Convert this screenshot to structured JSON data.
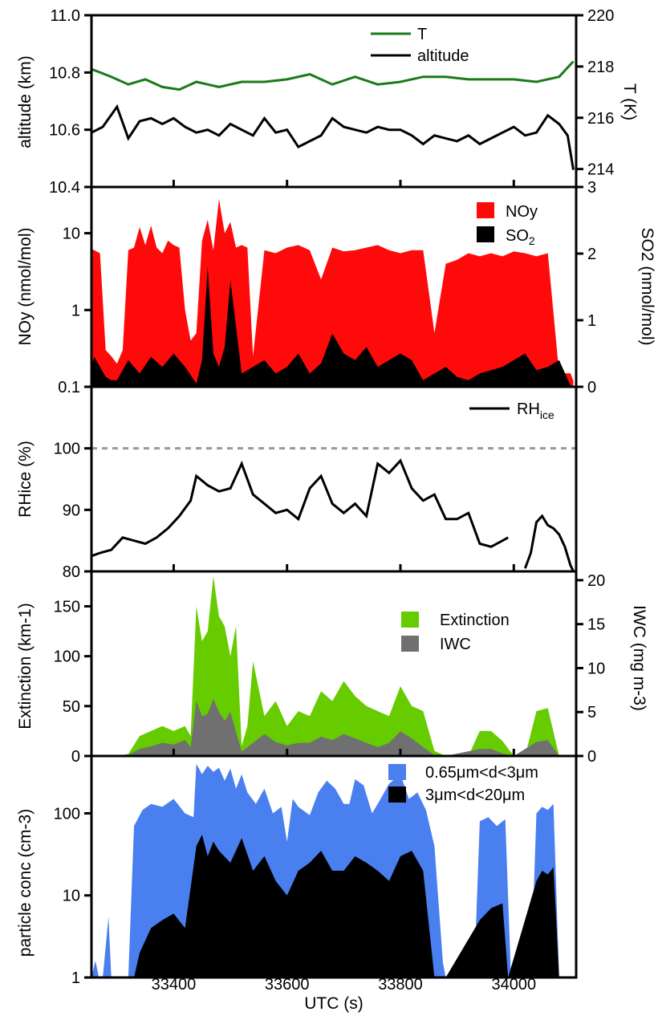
{
  "colors": {
    "temperature": "#1a7a1a",
    "altitude": "#000000",
    "noy": "#ff0a0a",
    "so2": "#000000",
    "rhice": "#000000",
    "saturation_line": "#999999",
    "extinction": "#66cc00",
    "iwc": "#707070",
    "small_particles": "#4a7ff0",
    "large_particles": "#000000"
  },
  "chart_data": [
    {
      "type": "line",
      "panel": "altitude-temperature",
      "ylabel": "altitude (km)",
      "ylim": [
        10.4,
        11.0
      ],
      "yticks": [
        "11.0",
        "10.8",
        "10.6",
        "10.4"
      ],
      "y2label": "T (K)",
      "y2lim": [
        213.3,
        220
      ],
      "y2ticks": [
        "220",
        "218",
        "216",
        "214"
      ],
      "legend": [
        "T",
        "altitude"
      ],
      "legend_position": "top-center",
      "series": [
        {
          "name": "T",
          "axis": "right",
          "x": [
            33255,
            33290,
            33320,
            33350,
            33380,
            33410,
            33440,
            33480,
            33520,
            33560,
            33600,
            33640,
            33680,
            33720,
            33760,
            33800,
            33840,
            33880,
            33920,
            33960,
            34000,
            34040,
            34080,
            34105
          ],
          "values": [
            217.9,
            217.6,
            217.3,
            217.5,
            217.2,
            217.1,
            217.4,
            217.2,
            217.4,
            217.4,
            217.5,
            217.7,
            217.3,
            217.6,
            217.3,
            217.4,
            217.6,
            217.6,
            217.5,
            217.5,
            217.5,
            217.4,
            217.6,
            218.2
          ]
        },
        {
          "name": "altitude",
          "axis": "left",
          "x": [
            33255,
            33275,
            33300,
            33320,
            33340,
            33360,
            33380,
            33400,
            33420,
            33440,
            33460,
            33480,
            33500,
            33520,
            33540,
            33560,
            33580,
            33600,
            33620,
            33640,
            33660,
            33680,
            33700,
            33720,
            33740,
            33760,
            33780,
            33800,
            33820,
            33840,
            33860,
            33880,
            33900,
            33920,
            33940,
            33960,
            33980,
            34000,
            34020,
            34040,
            34060,
            34080,
            34095,
            34105
          ],
          "values": [
            10.59,
            10.61,
            10.68,
            10.57,
            10.63,
            10.64,
            10.62,
            10.64,
            10.61,
            10.59,
            10.6,
            10.58,
            10.62,
            10.6,
            10.58,
            10.64,
            10.59,
            10.6,
            10.54,
            10.56,
            10.58,
            10.64,
            10.61,
            10.6,
            10.59,
            10.61,
            10.6,
            10.6,
            10.58,
            10.55,
            10.58,
            10.57,
            10.56,
            10.58,
            10.55,
            10.57,
            10.59,
            10.61,
            10.58,
            10.59,
            10.65,
            10.62,
            10.58,
            10.46
          ]
        }
      ]
    },
    {
      "type": "area",
      "panel": "noy-so2",
      "ylabel": "NOy (nmol/mol)",
      "yscale": "log",
      "ylim": [
        0.1,
        40
      ],
      "yticks": [
        "10",
        "1",
        "0.1"
      ],
      "y2label": "SO2 (nmol/mol)",
      "y2lim": [
        0,
        3
      ],
      "y2ticks": [
        "3",
        "2",
        "1",
        "0"
      ],
      "legend": [
        "NOy",
        "SO2"
      ],
      "legend_position": "top-right",
      "series": [
        {
          "name": "NOy",
          "axis": "left",
          "x": [
            33255,
            33260,
            33270,
            33280,
            33290,
            33300,
            33310,
            33320,
            33330,
            33340,
            33350,
            33360,
            33370,
            33380,
            33390,
            33400,
            33410,
            33420,
            33430,
            33440,
            33450,
            33460,
            33470,
            33480,
            33490,
            33500,
            33510,
            33520,
            33530,
            33540,
            33560,
            33580,
            33600,
            33620,
            33640,
            33660,
            33680,
            33700,
            33720,
            33740,
            33760,
            33780,
            33800,
            33820,
            33840,
            33860,
            33880,
            33900,
            33920,
            33940,
            33960,
            33980,
            34000,
            34020,
            34040,
            34060,
            34080,
            34100,
            34105
          ],
          "values": [
            6.2,
            6.0,
            5.5,
            0.3,
            0.25,
            0.2,
            0.3,
            6.0,
            6.5,
            12.0,
            7.0,
            12.5,
            6.5,
            5.5,
            8.0,
            7.0,
            6.5,
            1.0,
            0.4,
            0.5,
            8.0,
            15.0,
            6.0,
            28.0,
            10.0,
            14.0,
            6.5,
            7.0,
            6.5,
            0.25,
            6.0,
            5.5,
            6.5,
            7.0,
            6.0,
            2.5,
            6.5,
            5.8,
            6.0,
            6.5,
            7.0,
            6.0,
            5.5,
            6.0,
            6.0,
            0.5,
            4.0,
            4.5,
            5.5,
            5.0,
            5.5,
            5.0,
            5.8,
            5.5,
            5.0,
            5.5,
            0.15,
            0.15,
            0.12
          ]
        },
        {
          "name": "SO2",
          "axis": "right",
          "x": [
            33255,
            33260,
            33270,
            33280,
            33290,
            33300,
            33320,
            33340,
            33360,
            33380,
            33400,
            33420,
            33440,
            33450,
            33460,
            33470,
            33480,
            33490,
            33500,
            33520,
            33540,
            33560,
            33580,
            33600,
            33620,
            33640,
            33660,
            33680,
            33700,
            33720,
            33740,
            33760,
            33780,
            33800,
            33820,
            33840,
            33860,
            33880,
            33900,
            33920,
            33940,
            33960,
            33980,
            34000,
            34020,
            34040,
            34060,
            34080,
            34100,
            34105
          ],
          "values": [
            0.3,
            0.45,
            0.3,
            0.15,
            0.1,
            0.1,
            0.4,
            0.2,
            0.45,
            0.3,
            0.5,
            0.3,
            0.05,
            0.4,
            1.8,
            0.5,
            0.3,
            0.6,
            1.6,
            0.2,
            0.3,
            0.4,
            0.2,
            0.3,
            0.5,
            0.2,
            0.35,
            0.8,
            0.5,
            0.4,
            0.6,
            0.3,
            0.4,
            0.5,
            0.4,
            0.1,
            0.2,
            0.3,
            0.15,
            0.1,
            0.2,
            0.25,
            0.3,
            0.4,
            0.5,
            0.25,
            0.3,
            0.4,
            0.02,
            0.02
          ]
        }
      ]
    },
    {
      "type": "line",
      "panel": "rhice",
      "ylabel": "RHice (%)",
      "ylim": [
        80,
        110
      ],
      "yticks": [
        "100",
        "90",
        "80"
      ],
      "legend": [
        "RHice"
      ],
      "legend_position": "top-right",
      "reference_line": 100,
      "series": [
        {
          "name": "RHice",
          "x": [
            33255,
            33270,
            33290,
            33310,
            33330,
            33350,
            33370,
            33390,
            33410,
            33430,
            33440,
            33460,
            33480,
            33500,
            33520,
            33540,
            33560,
            33580,
            33600,
            33620,
            33640,
            33660,
            33680,
            33700,
            33720,
            33740,
            33760,
            33780,
            33800,
            33820,
            33840,
            33860,
            33880,
            33900,
            33920,
            33940,
            33960,
            33980,
            33990
          ],
          "values": [
            82.5,
            83.0,
            83.5,
            85.5,
            85.0,
            84.5,
            85.5,
            87.0,
            89.0,
            91.5,
            95.5,
            94.0,
            93.0,
            93.5,
            97.5,
            92.5,
            91.0,
            89.5,
            90.0,
            88.5,
            93.5,
            95.5,
            91.0,
            89.5,
            91.0,
            89.0,
            97.5,
            96.0,
            98.0,
            93.5,
            91.5,
            92.5,
            88.5,
            88.5,
            89.5,
            84.5,
            84.0,
            85.0,
            85.5
          ]
        },
        {
          "name": "RHice",
          "x": [
            34020,
            34030,
            34040,
            34050,
            34060,
            34070,
            34080,
            34090,
            34100,
            34105
          ],
          "values": [
            80.5,
            83.0,
            88.0,
            89.0,
            87.5,
            87.0,
            86.0,
            84.0,
            81.0,
            80.0
          ]
        }
      ]
    },
    {
      "type": "area",
      "panel": "extinction-iwc",
      "ylabel": "Extinction (km-1)",
      "ylim": [
        0,
        185
      ],
      "yticks": [
        "150",
        "100",
        "50",
        "0"
      ],
      "y2label": "IWC (mg m-3)",
      "y2lim": [
        0,
        21
      ],
      "y2ticks": [
        "20",
        "15",
        "10",
        "5",
        "0"
      ],
      "legend": [
        "Extinction",
        "IWC"
      ],
      "legend_position": "top-right",
      "series": [
        {
          "name": "Extinction",
          "axis": "left",
          "x": [
            33255,
            33300,
            33320,
            33340,
            33360,
            33380,
            33400,
            33420,
            33430,
            33440,
            33450,
            33460,
            33470,
            33480,
            33490,
            33500,
            33510,
            33520,
            33530,
            33540,
            33560,
            33580,
            33600,
            33620,
            33640,
            33660,
            33680,
            33700,
            33720,
            33740,
            33760,
            33780,
            33800,
            33820,
            33840,
            33860,
            33880,
            33900,
            33920,
            33940,
            33960,
            33980,
            34000,
            34020,
            34040,
            34060,
            34080,
            34105
          ],
          "values": [
            0,
            0,
            2,
            20,
            25,
            30,
            25,
            30,
            20,
            150,
            115,
            125,
            180,
            140,
            130,
            100,
            130,
            10,
            30,
            95,
            40,
            55,
            30,
            45,
            40,
            65,
            55,
            75,
            60,
            50,
            45,
            40,
            70,
            50,
            45,
            5,
            0,
            0,
            0,
            25,
            25,
            15,
            0,
            0,
            45,
            48,
            0,
            0
          ]
        },
        {
          "name": "IWC",
          "axis": "right",
          "x": [
            33255,
            33320,
            33340,
            33360,
            33380,
            33400,
            33420,
            33430,
            33440,
            33450,
            33460,
            33470,
            33480,
            33490,
            33500,
            33520,
            33540,
            33560,
            33580,
            33600,
            33620,
            33640,
            33660,
            33680,
            33700,
            33720,
            33740,
            33760,
            33780,
            33800,
            33820,
            33840,
            33860,
            33880,
            33940,
            33960,
            33980,
            34000,
            34040,
            34060,
            34080,
            34105
          ],
          "values": [
            0,
            0.1,
            0.8,
            1.1,
            1.5,
            1.3,
            1.8,
            1.0,
            6.3,
            4.5,
            4.8,
            6.5,
            5.0,
            4.0,
            5.0,
            0.5,
            1.5,
            2.5,
            1.6,
            1.2,
            1.5,
            1.5,
            2.2,
            1.8,
            2.5,
            2.0,
            1.5,
            1.0,
            1.5,
            2.8,
            2.0,
            1.0,
            0.1,
            0,
            0.8,
            0.8,
            0.3,
            0,
            1.6,
            1.8,
            0,
            0
          ]
        }
      ]
    },
    {
      "type": "area",
      "panel": "particle-concentration",
      "xlabel": "UTC (s)",
      "xlim": [
        33255,
        34110
      ],
      "xticks": [
        "33400",
        "33600",
        "33800",
        "34000"
      ],
      "ylabel": "particle conc (cm-3)",
      "yscale": "log",
      "ylim": [
        1,
        500
      ],
      "yticks": [
        "100",
        "10",
        "1"
      ],
      "legend": [
        "0.65μm<d<3μm",
        "3μm<d<20μm"
      ],
      "legend_position": "top-right",
      "series": [
        {
          "name": "0.65μm<d<3μm",
          "x": [
            33255,
            33262,
            33268,
            33275,
            33285,
            33290,
            33300,
            33310,
            33320,
            33330,
            33345,
            33360,
            33380,
            33400,
            33420,
            33435,
            33440,
            33450,
            33460,
            33470,
            33480,
            33490,
            33500,
            33510,
            33520,
            33530,
            33545,
            33560,
            33575,
            33590,
            33600,
            33610,
            33620,
            33640,
            33655,
            33670,
            33685,
            33700,
            33710,
            33720,
            33735,
            33750,
            33765,
            33780,
            33800,
            33815,
            33830,
            33845,
            33860,
            33875,
            33880,
            33930,
            33940,
            33955,
            33970,
            33985,
            33995,
            34000,
            34030,
            34040,
            34050,
            34060,
            34070,
            34080,
            34105
          ],
          "values": [
            1,
            1.6,
            1,
            1,
            5.5,
            1,
            1,
            1,
            1,
            70,
            110,
            130,
            120,
            150,
            100,
            90,
            400,
            300,
            380,
            320,
            360,
            250,
            350,
            200,
            300,
            180,
            130,
            200,
            100,
            120,
            45,
            150,
            120,
            95,
            180,
            250,
            200,
            130,
            130,
            260,
            220,
            100,
            150,
            230,
            300,
            150,
            180,
            110,
            40,
            1.5,
            1,
            1,
            80,
            90,
            70,
            85,
            1,
            1,
            1,
            100,
            120,
            110,
            130,
            1,
            1
          ]
        },
        {
          "name": "3μm<d<20μm",
          "x": [
            33255,
            33330,
            33340,
            33360,
            33380,
            33400,
            33420,
            33440,
            33450,
            33460,
            33470,
            33480,
            33500,
            33520,
            33540,
            33560,
            33580,
            33600,
            33620,
            33640,
            33660,
            33680,
            33700,
            33720,
            33740,
            33760,
            33780,
            33800,
            33820,
            33840,
            33860,
            33880,
            33940,
            33960,
            33980,
            33990,
            34040,
            34050,
            34060,
            34070,
            34080,
            34105
          ],
          "values": [
            1,
            1,
            2,
            4,
            5,
            6,
            4,
            40,
            55,
            30,
            45,
            35,
            25,
            50,
            20,
            30,
            15,
            10,
            20,
            25,
            35,
            20,
            20,
            30,
            25,
            20,
            15,
            30,
            35,
            20,
            1,
            1,
            5,
            7,
            8,
            1,
            15,
            20,
            18,
            22,
            1,
            1
          ]
        }
      ]
    }
  ]
}
